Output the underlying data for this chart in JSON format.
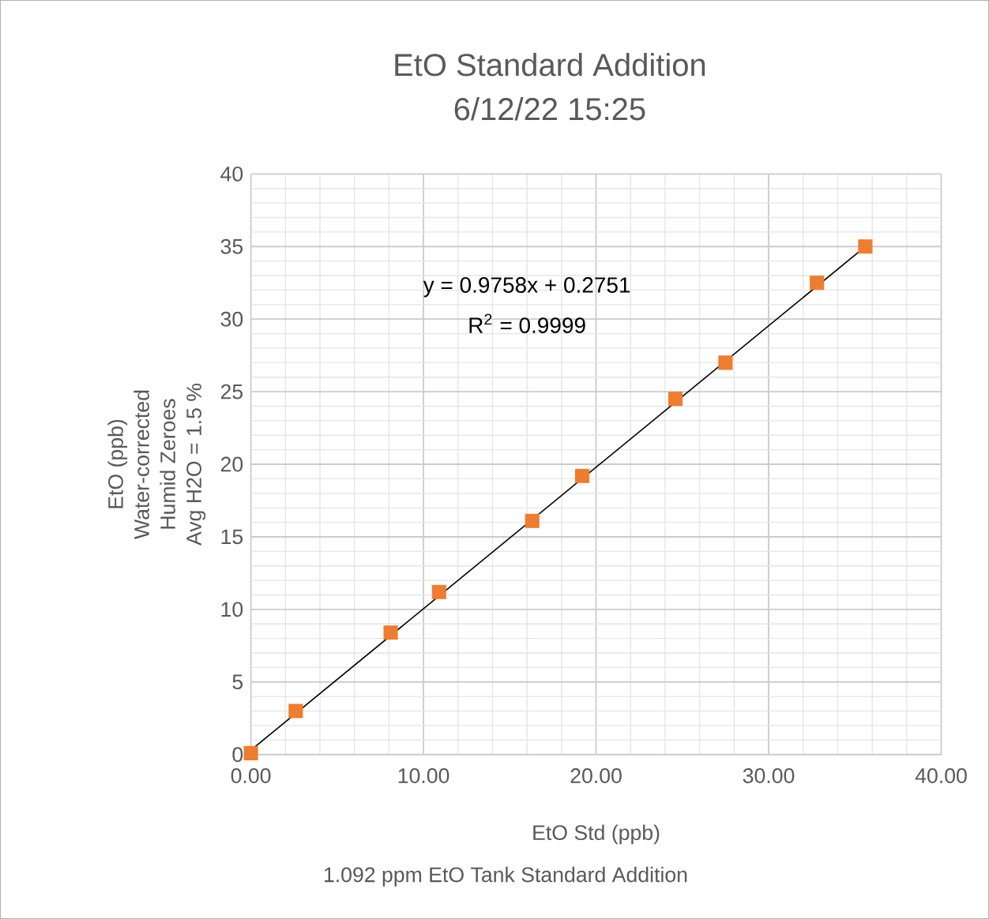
{
  "chart_data": {
    "type": "scatter",
    "title": "EtO Standard Addition",
    "subtitle": "6/12/22 15:25",
    "xlabel": "EtO Std (ppb)",
    "ylabel": "EtO (ppb)",
    "annotations": [
      "Water-corrected",
      "Humid Zeroes",
      "Avg H2O = 1.5 %",
      "y = 0.9758x + 0.2751",
      "R$^{2}$ = 0.9999",
      "1.092 ppm EtO Tank Standard Addition"
    ],
    "x": [
      0,
      2.6,
      8.1,
      10.9,
      16.3,
      19.2,
      24.6,
      27.5,
      32.8,
      35.6
    ],
    "series": [
      {
        "color": "#ed7d31",
        "marker": "square",
        "values": [
          0.1,
          3.0,
          8.4,
          11.2,
          16.1,
          19.2,
          24.5,
          27.0,
          32.5,
          35.0
        ]
      },
      {
        "type": "line",
        "color": "#000000",
        "line_style": "solid",
        "marker": "none",
        "x": [
          0,
          35.6
        ],
        "values": [
          0.3,
          35.0
        ]
      }
    ],
    "xlim": [
      0,
      40
    ],
    "ylim": [
      0,
      40
    ],
    "xticks": [
      {
        "value": 0,
        "label": "0.00"
      },
      {
        "value": 10,
        "label": "10.00"
      },
      {
        "value": 20,
        "label": "20.00"
      },
      {
        "value": 30,
        "label": "30.00"
      },
      {
        "value": 40,
        "label": "40.00"
      }
    ],
    "yticks": [
      0,
      5,
      10,
      15,
      20,
      25,
      30,
      35,
      40
    ],
    "grid": true
  }
}
